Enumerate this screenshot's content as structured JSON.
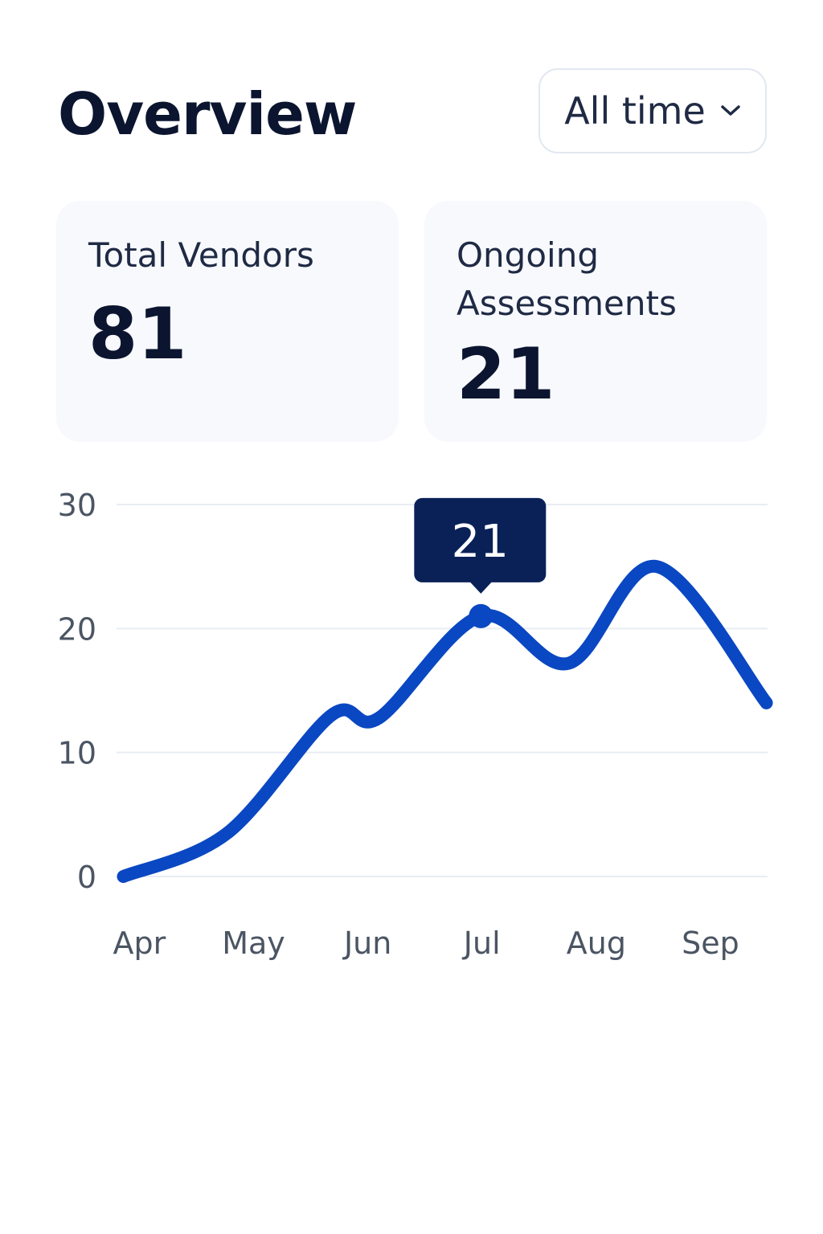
{
  "header": {
    "title": "Overview",
    "filter": "All time"
  },
  "stats": [
    {
      "label": "Total Vendors",
      "value": 81
    },
    {
      "label": "Ongoing Assessments",
      "value": 21
    }
  ],
  "chart_data": {
    "type": "line",
    "x": [
      -0.14,
      0.77,
      1.68,
      2.1,
      2.99,
      3.76,
      4.53,
      5.49
    ],
    "series": [
      {
        "color": "#0a47c2",
        "values": [
          0,
          3.5,
          13,
          12.8,
          21,
          17.2,
          25,
          14
        ]
      }
    ],
    "highlight": 4,
    "xlim": [
      -0.2,
      5.5
    ],
    "xticks": [
      {
        "value": 0,
        "label": "Apr"
      },
      {
        "value": 1,
        "label": "May"
      },
      {
        "value": 2,
        "label": "Jun"
      },
      {
        "value": 3,
        "label": "Jul"
      },
      {
        "value": 4,
        "label": "Aug"
      },
      {
        "value": 5,
        "label": "Sep"
      }
    ],
    "ylim": [
      0,
      30
    ],
    "yticks": [
      0,
      10,
      20,
      30
    ],
    "grid": true
  }
}
